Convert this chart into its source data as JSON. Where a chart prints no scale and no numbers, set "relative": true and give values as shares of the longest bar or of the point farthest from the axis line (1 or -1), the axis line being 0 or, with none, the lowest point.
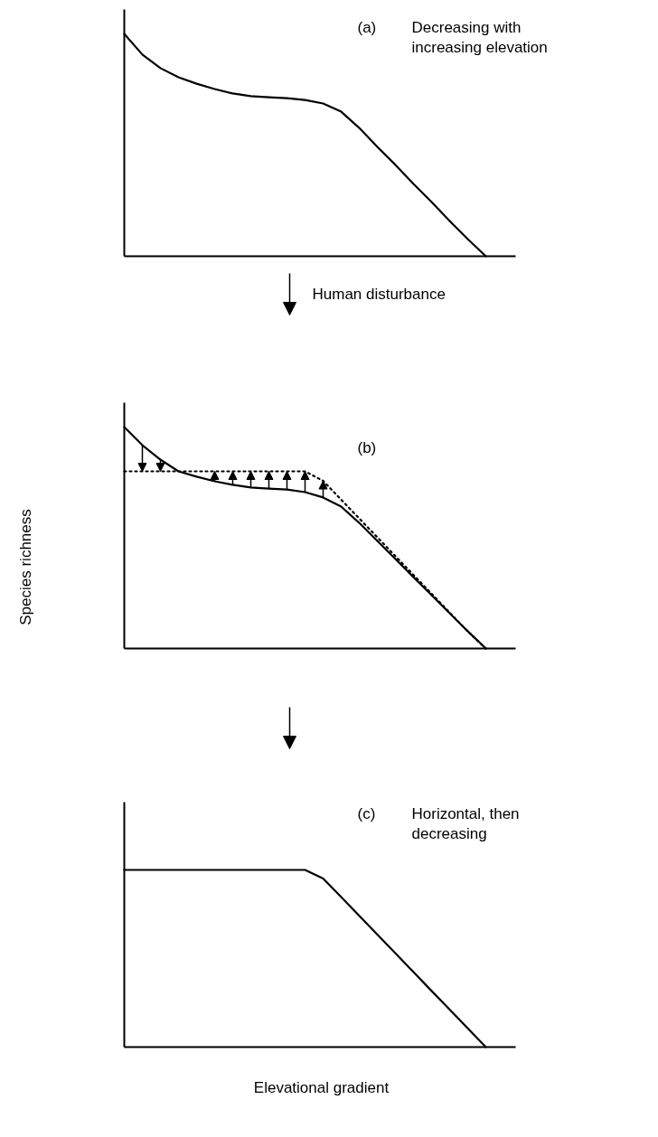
{
  "chart_data": [
    {
      "type": "line",
      "relative": true,
      "title": "(a)",
      "subtitle": "Decreasing with\nincreasing elevation",
      "annotations": [
        "Human disturbance"
      ],
      "tick_labels": false,
      "categories": [
        null,
        null,
        null,
        null,
        null,
        null,
        null,
        null,
        null,
        null,
        null,
        null,
        null,
        null,
        null,
        null,
        null,
        null,
        null,
        null,
        null,
        null
      ],
      "series": [
        {
          "color": "#000000",
          "line_style": "solid",
          "values": [
            1,
            0.907,
            0.846,
            0.805,
            0.776,
            0.752,
            0.732,
            0.72,
            0.715,
            0.711,
            0.703,
            0.687,
            0.65,
            0.577,
            0.492,
            0.411,
            0.325,
            0.244,
            0.159,
            0.077,
            0,
            null
          ]
        }
      ]
    },
    {
      "type": "line",
      "relative": true,
      "title": "(b)",
      "ylabel": "Species richness",
      "tick_labels": false,
      "categories": [
        null,
        null,
        null,
        null,
        null,
        null,
        null,
        null,
        null,
        null,
        null,
        null,
        null,
        null,
        null,
        null,
        null,
        null,
        null,
        null,
        null,
        null
      ],
      "series": [
        {
          "color": "#000000",
          "line_style": "solid",
          "values": [
            1,
            0.918,
            0.853,
            0.8,
            0.776,
            0.755,
            0.739,
            0.727,
            0.722,
            0.718,
            0.706,
            0.682,
            0.641,
            0.567,
            0.486,
            0.404,
            0.322,
            0.241,
            0.159,
            0.078,
            0,
            null
          ]
        },
        {
          "color": "#000000",
          "line_style": "dotted",
          "values": [
            0.8,
            0.8,
            0.8,
            0.8,
            0.8,
            0.8,
            0.8,
            0.8,
            0.8,
            0.8,
            0.8,
            0.757,
            0.672,
            0.587,
            0.502,
            0.417,
            0.332,
            0.247,
            0.162,
            0.077,
            0,
            null
          ]
        }
      ]
    },
    {
      "type": "line",
      "relative": true,
      "title": "(c)",
      "subtitle": "Horizontal, then\ndecreasing",
      "xlabel": "Elevational gradient",
      "tick_labels": false,
      "categories": [
        null,
        null,
        null,
        null,
        null,
        null,
        null,
        null,
        null,
        null,
        null,
        null,
        null,
        null,
        null,
        null,
        null,
        null,
        null,
        null,
        null,
        null
      ],
      "series": [
        {
          "color": "#000000",
          "line_style": "solid",
          "values": [
            1,
            1,
            1,
            1,
            1,
            1,
            1,
            1,
            1,
            1,
            1,
            0.952,
            0.847,
            0.741,
            0.635,
            0.529,
            0.423,
            0.317,
            0.212,
            0.106,
            0,
            null
          ]
        }
      ]
    }
  ]
}
